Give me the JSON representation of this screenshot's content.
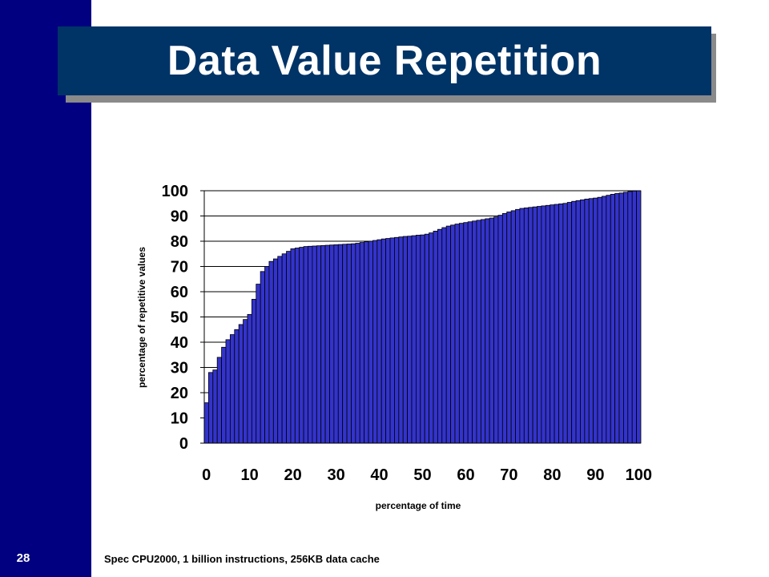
{
  "slide": {
    "title": "Data Value Repetition",
    "number": "28",
    "footnote": "Spec CPU2000, 1 billion instructions, 256KB data cache",
    "colors": {
      "sidebar": "#000080",
      "title_bg": "#003366",
      "bar_fill": "#3333cc"
    }
  },
  "chart_data": {
    "type": "bar",
    "title": "",
    "xlabel": "percentage of time",
    "ylabel": "percentage of repetitive values",
    "xlim": [
      0,
      100
    ],
    "ylim": [
      0,
      100
    ],
    "xticks": [
      0,
      10,
      20,
      30,
      40,
      50,
      60,
      70,
      80,
      90,
      100
    ],
    "yticks": [
      0,
      10,
      20,
      30,
      40,
      50,
      60,
      70,
      80,
      90,
      100
    ],
    "grid": "horizontal",
    "legend": "none",
    "x": [
      0,
      1,
      2,
      3,
      4,
      5,
      6,
      7,
      8,
      9,
      10,
      11,
      12,
      13,
      14,
      15,
      16,
      17,
      18,
      19,
      20,
      21,
      22,
      23,
      24,
      25,
      26,
      27,
      28,
      29,
      30,
      31,
      32,
      33,
      34,
      35,
      36,
      37,
      38,
      39,
      40,
      41,
      42,
      43,
      44,
      45,
      46,
      47,
      48,
      49,
      50,
      51,
      52,
      53,
      54,
      55,
      56,
      57,
      58,
      59,
      60,
      61,
      62,
      63,
      64,
      65,
      66,
      67,
      68,
      69,
      70,
      71,
      72,
      73,
      74,
      75,
      76,
      77,
      78,
      79,
      80,
      81,
      82,
      83,
      84,
      85,
      86,
      87,
      88,
      89,
      90,
      91,
      92,
      93,
      94,
      95,
      96,
      97,
      98,
      99,
      100
    ],
    "values": [
      16,
      28,
      29,
      34,
      38,
      41,
      43,
      45,
      47,
      49,
      51,
      57,
      63,
      68,
      70,
      72,
      73,
      74,
      75,
      76,
      77,
      77.3,
      77.6,
      77.9,
      78,
      78.1,
      78.2,
      78.3,
      78.4,
      78.5,
      78.6,
      78.7,
      78.8,
      78.9,
      79,
      79.2,
      79.5,
      79.8,
      80,
      80.3,
      80.6,
      80.9,
      81.1,
      81.3,
      81.5,
      81.7,
      81.9,
      82,
      82.2,
      82.4,
      82.5,
      82.8,
      83.3,
      84,
      84.7,
      85.4,
      86,
      86.4,
      86.8,
      87.1,
      87.4,
      87.7,
      88,
      88.3,
      88.6,
      88.9,
      89.2,
      89.6,
      90.3,
      91,
      91.6,
      92.1,
      92.6,
      93,
      93.2,
      93.4,
      93.6,
      93.8,
      94,
      94.2,
      94.4,
      94.6,
      94.8,
      95,
      95.4,
      95.8,
      96.1,
      96.4,
      96.7,
      96.9,
      97.1,
      97.4,
      97.8,
      98.2,
      98.6,
      98.9,
      99.1,
      99.4,
      99.7,
      99.9,
      100
    ]
  }
}
